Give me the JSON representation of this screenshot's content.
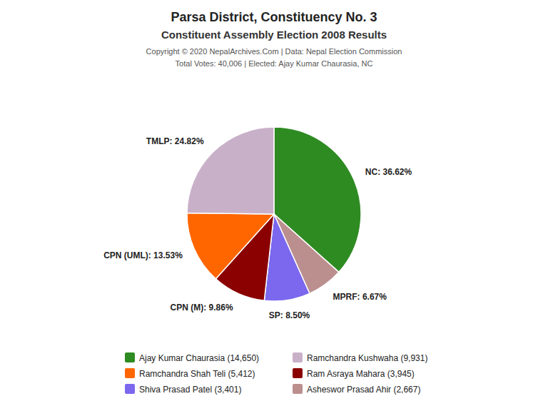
{
  "chart_data": {
    "type": "pie",
    "title": "Parsa District, Constituency No. 3",
    "subtitle": "Constituent Assembly Election 2008 Results",
    "annotations": [
      "Copyright © 2020 NepalArchives.Com | Data: Nepal Election Commission",
      "Total Votes: 40,006 | Elected: Ajay Kumar Chaurasia, NC"
    ],
    "values": [
      36.62,
      6.67,
      8.5,
      9.86,
      13.53,
      24.82
    ],
    "value_labels": [
      "NC: 36.62%",
      "MPRF: 6.67%",
      "SP: 8.50%",
      "CPN (M): 9.86%",
      "CPN (UML): 13.53%",
      "TMLP: 24.82%"
    ],
    "colors": [
      "#2E8B22",
      "#BC8F8F",
      "#7B68EE",
      "#8B0000",
      "#FF6600",
      "#C9B0C9"
    ],
    "data_labels": true,
    "legend": "bottom",
    "legend_entries": [
      {
        "label": "Ajay Kumar Chaurasia (14,650)",
        "color": "#2E8B22"
      },
      {
        "label": "Ramchandra Shah Teli (5,412)",
        "color": "#FF6600"
      },
      {
        "label": "Shiva Prasad Patel (3,401)",
        "color": "#7B68EE"
      },
      {
        "label": "Ramchandra Kushwaha (9,931)",
        "color": "#C9B0C9"
      },
      {
        "label": "Ram Asraya Mahara (3,945)",
        "color": "#8B0000"
      },
      {
        "label": "Asheswor Prasad Ahir (2,667)",
        "color": "#BC8F8F"
      }
    ]
  }
}
